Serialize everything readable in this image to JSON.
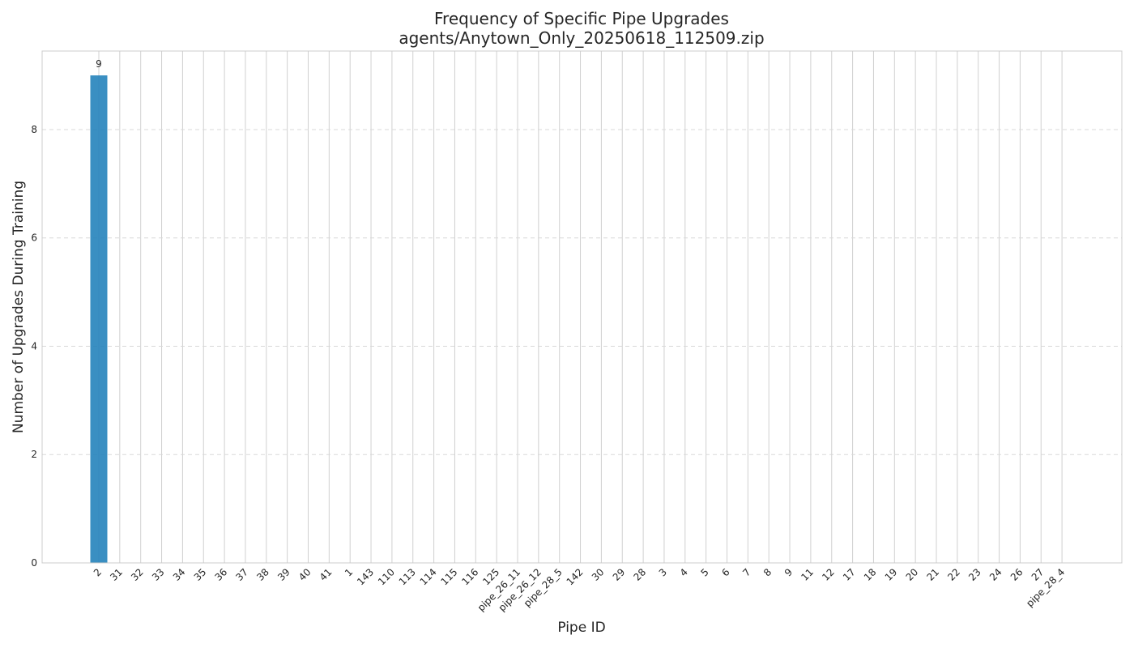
{
  "chart_data": {
    "type": "bar",
    "title": "Frequency of Specific Pipe Upgrades",
    "subtitle": "agents/Anytown_Only_20250618_112509.zip",
    "xlabel": "Pipe ID",
    "ylabel": "Number of Upgrades During Training",
    "categories": [
      "2",
      "31",
      "32",
      "33",
      "34",
      "35",
      "36",
      "37",
      "38",
      "39",
      "40",
      "41",
      "1",
      "143",
      "110",
      "113",
      "114",
      "115",
      "116",
      "125",
      "pipe_26_11",
      "pipe_26_12",
      "pipe_28_5",
      "142",
      "30",
      "29",
      "28",
      "3",
      "4",
      "5",
      "6",
      "7",
      "8",
      "9",
      "11",
      "12",
      "17",
      "18",
      "19",
      "20",
      "21",
      "22",
      "23",
      "24",
      "26",
      "27",
      "pipe_28_4"
    ],
    "values": [
      9,
      0,
      0,
      0,
      0,
      0,
      0,
      0,
      0,
      0,
      0,
      0,
      0,
      0,
      0,
      0,
      0,
      0,
      0,
      0,
      0,
      0,
      0,
      0,
      0,
      0,
      0,
      0,
      0,
      0,
      0,
      0,
      0,
      0,
      0,
      0,
      0,
      0,
      0,
      0,
      0,
      0,
      0,
      0,
      0,
      0,
      0
    ],
    "data_labels": [
      "9"
    ],
    "ylim": [
      0,
      9.45
    ],
    "yticks": [
      0,
      2,
      4,
      6,
      8
    ],
    "grid": "vertical solid, horizontal dashed",
    "bar_color": "#1f7fba"
  }
}
